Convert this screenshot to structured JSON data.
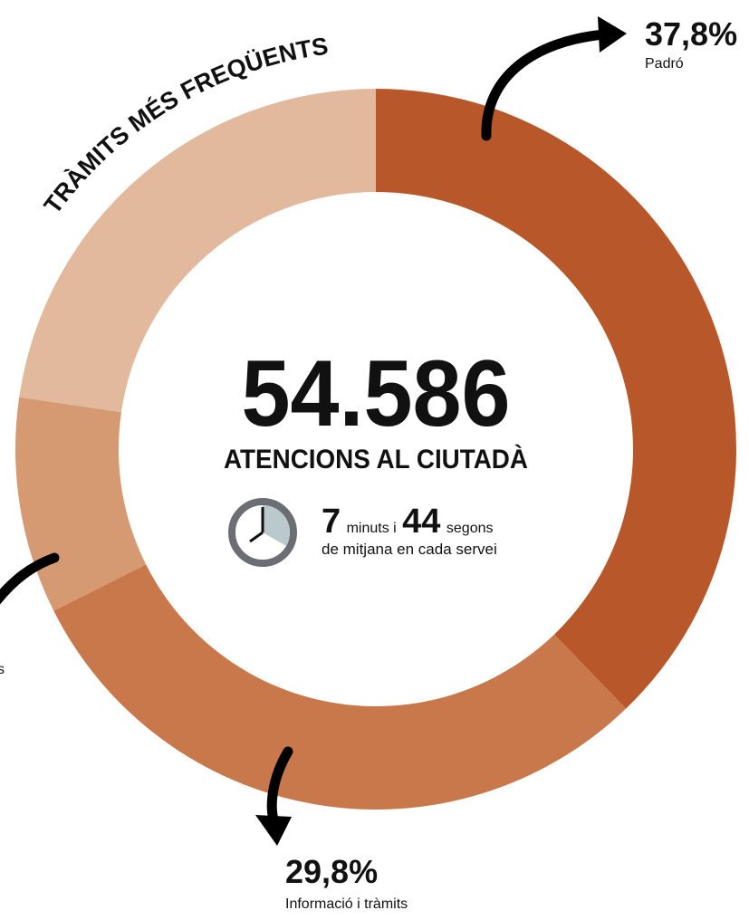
{
  "chart_data": {
    "type": "donut",
    "title": "TRÀMITS MÉS FREQÜENTS",
    "categories": [
      "Padró",
      "Informació i tràmits",
      "s",
      null
    ],
    "values": [
      37.8,
      29.8,
      9.7,
      22.7
    ],
    "value_labels": [
      "37,8%",
      "29,8%",
      null,
      null
    ],
    "colors": [
      "#b8582a",
      "#c8784a",
      "#d69a72",
      "#e2b99c"
    ],
    "center": {
      "total": "54.586",
      "subtitle": "ATENCIONS AL CIUTADÀ",
      "minutes": "7",
      "minutes_label": "minuts i",
      "seconds": "44",
      "seconds_label": "segons",
      "note": "de mitjana en cada servei"
    }
  }
}
